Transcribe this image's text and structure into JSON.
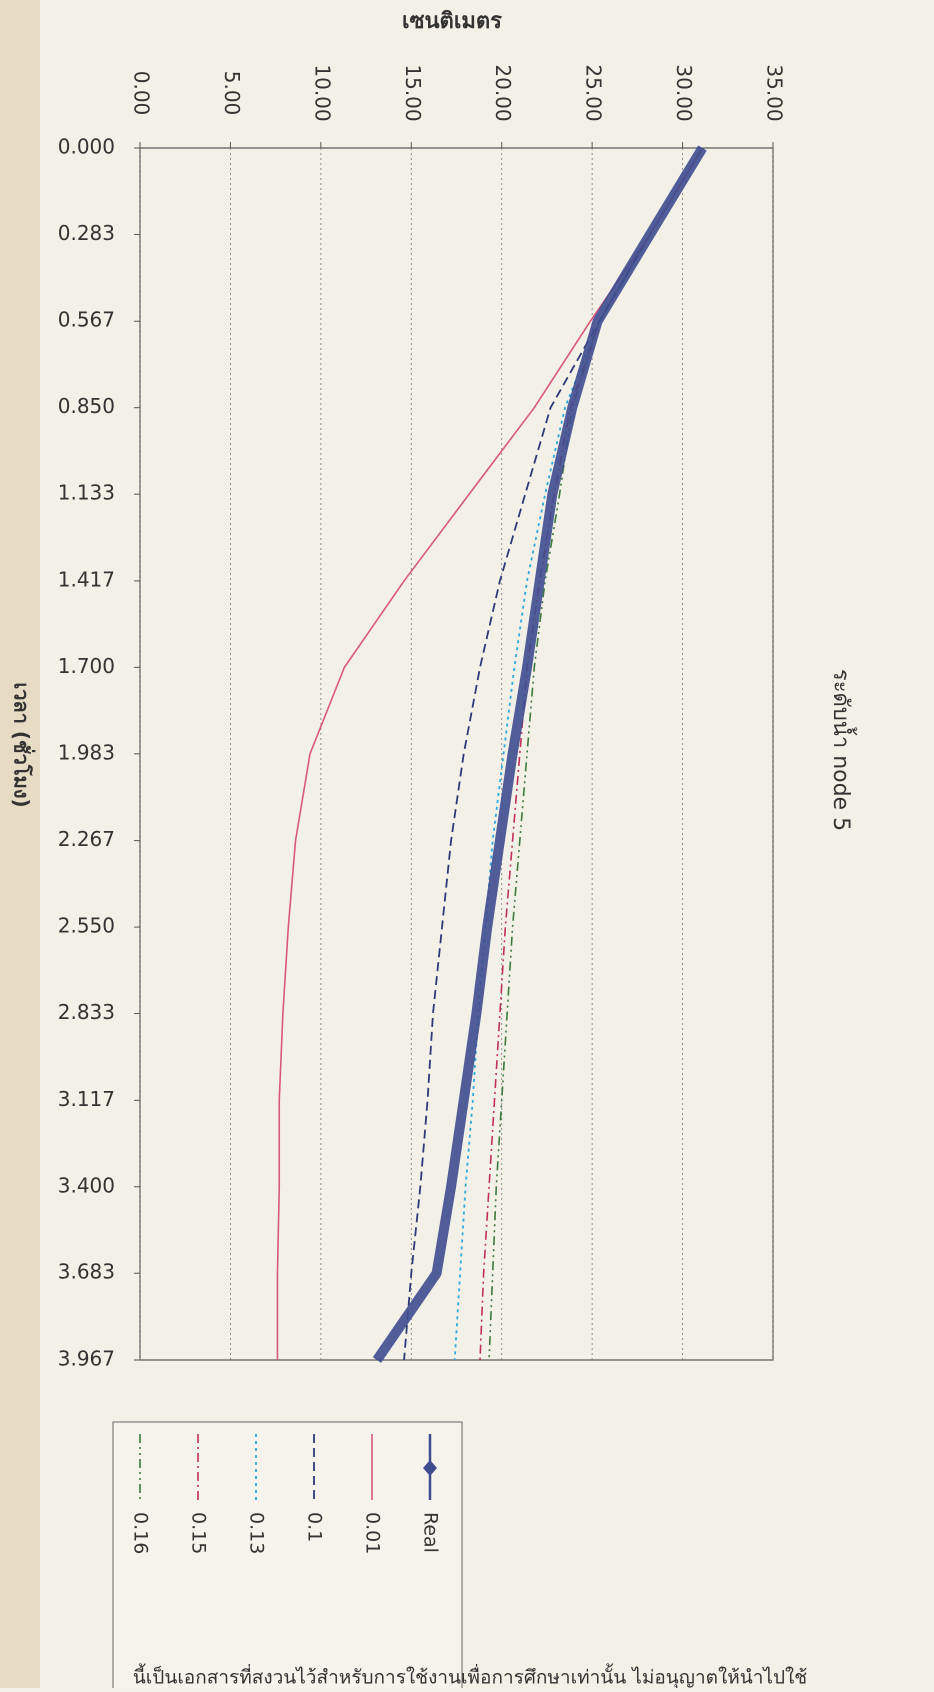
{
  "chart_data": {
    "type": "line",
    "title": "ระดับน้ำ node 5",
    "x_label": "เวลา (ชั่วโมง)",
    "y_label": "เซนติเมตร",
    "x": [
      0,
      0.283,
      0.567,
      0.85,
      1.133,
      1.417,
      1.7,
      1.983,
      2.267,
      2.55,
      2.833,
      3.117,
      3.4,
      3.683,
      3.967
    ],
    "xlim": [
      0,
      3.967
    ],
    "xticks": [
      {
        "value": 0,
        "label": "0.000"
      },
      0.283,
      0.567,
      {
        "value": 0.85,
        "label": "0.850"
      },
      1.133,
      1.417,
      {
        "value": 1.7,
        "label": "1.700"
      },
      1.983,
      2.267,
      {
        "value": 2.55,
        "label": "2.550"
      },
      2.833,
      3.117,
      {
        "value": 3.4,
        "label": "3.400"
      },
      3.683,
      3.967
    ],
    "ylim": [
      0,
      35
    ],
    "yticks": [
      {
        "value": 0,
        "label": "0.00"
      },
      {
        "value": 5,
        "label": "5.00"
      },
      {
        "value": 10,
        "label": "10.00"
      },
      {
        "value": 15,
        "label": "15.00"
      },
      {
        "value": 20,
        "label": "20.00"
      },
      {
        "value": 25,
        "label": "25.00"
      },
      {
        "value": 30,
        "label": "30.00"
      },
      {
        "value": 35,
        "label": "35.00"
      }
    ],
    "grid": true,
    "series": [
      {
        "name": "Real",
        "color": "#3f4c90",
        "width": 10,
        "dash": "none",
        "marker": "diamond",
        "values": [
          31.1,
          28.2,
          25.3,
          23.9,
          22.8,
          22.1,
          21.4,
          20.6,
          19.9,
          19.2,
          18.6,
          17.9,
          17.2,
          16.4,
          13.1
        ]
      },
      {
        "name": "0.01",
        "color": "#d9587a",
        "width": 1.6,
        "dash": "none",
        "values": [
          31.1,
          28.2,
          24.9,
          21.8,
          18.2,
          14.6,
          11.3,
          9.4,
          8.6,
          8.2,
          7.9,
          7.7,
          7.7,
          7.6,
          7.6
        ]
      },
      {
        "name": "0.1",
        "color": "#2e3a78",
        "width": 1.8,
        "dash": "9,5",
        "values": [
          31.1,
          28.2,
          25.4,
          22.7,
          21.3,
          19.9,
          18.8,
          17.9,
          17.2,
          16.7,
          16.2,
          15.9,
          15.5,
          15.0,
          14.6
        ]
      },
      {
        "name": "0.13",
        "color": "#2fa8dc",
        "width": 1.8,
        "dash": "3,4",
        "values": [
          31.1,
          28.2,
          25.4,
          23.5,
          22.4,
          21.4,
          20.7,
          20.1,
          19.5,
          19.1,
          18.7,
          18.4,
          18.0,
          17.7,
          17.4
        ]
      },
      {
        "name": "0.15",
        "color": "#c0305a",
        "width": 1.6,
        "dash": "9,4,2,4",
        "values": [
          31.1,
          28.2,
          25.4,
          23.8,
          22.9,
          22.1,
          21.4,
          21.0,
          20.6,
          20.2,
          19.9,
          19.6,
          19.3,
          19.0,
          18.8
        ]
      },
      {
        "name": "0.16",
        "color": "#3d7a3d",
        "width": 1.6,
        "dash": "9,4,2,4,2,4",
        "values": [
          31.1,
          28.2,
          25.4,
          23.9,
          23.2,
          22.4,
          21.8,
          21.4,
          21.0,
          20.6,
          20.3,
          20.0,
          19.7,
          19.5,
          19.3
        ]
      }
    ]
  },
  "watermark": "นี้เป็นเอกสารที่สงวนไว้สำหรับการใช้งานเพื่อการศึกษาเท่านั้น ไม่อนุญาตให้นำไปใช้"
}
